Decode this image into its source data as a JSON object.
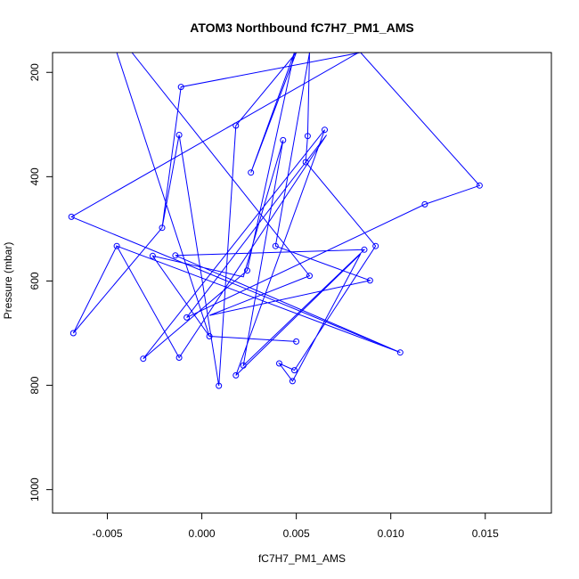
{
  "chart_data": {
    "type": "line",
    "title": "ATOM3 Northbound fC7H7_PM1_AMS",
    "xlabel": "fC7H7_PM1_AMS",
    "ylabel": "Pressure (mbar)",
    "xlim": [
      -0.0079,
      0.0185
    ],
    "ylim": [
      1045,
      162
    ],
    "y_reversed": true,
    "grid": false,
    "legend": "none",
    "x_ticks": [
      {
        "value": -0.005,
        "label": "-0.005"
      },
      {
        "value": 0.0,
        "label": "0.000"
      },
      {
        "value": 0.005,
        "label": "0.005"
      },
      {
        "value": 0.01,
        "label": "0.010"
      },
      {
        "value": 0.015,
        "label": "0.015"
      }
    ],
    "y_ticks": [
      {
        "value": 200,
        "label": "200"
      },
      {
        "value": 400,
        "label": "400"
      },
      {
        "value": 600,
        "label": "600"
      },
      {
        "value": 800,
        "label": "800"
      },
      {
        "value": 1000,
        "label": "1000"
      }
    ],
    "series": [
      {
        "color": "#0000ff",
        "points": [
          {
            "x": -0.0037,
            "y": 162,
            "marker": false
          },
          {
            "x": 0.0057,
            "y": 590,
            "marker": true
          },
          {
            "x": 0.0004,
            "y": 666,
            "marker": false
          },
          {
            "x": 0.0089,
            "y": 599,
            "marker": true
          },
          {
            "x": 0.0039,
            "y": 533,
            "marker": true
          },
          {
            "x": 0.0057,
            "y": 162,
            "marker": false
          },
          {
            "x": 0.0056,
            "y": 322,
            "marker": true
          },
          {
            "x": 0.0055,
            "y": 372,
            "marker": true
          },
          {
            "x": 0.0092,
            "y": 533,
            "marker": true
          },
          {
            "x": 0.0049,
            "y": 771,
            "marker": true
          },
          {
            "x": 0.0041,
            "y": 758,
            "marker": true
          },
          {
            "x": 0.0048,
            "y": 792,
            "marker": true
          },
          {
            "x": 0.0084,
            "y": 548,
            "marker": false
          },
          {
            "x": 0.0018,
            "y": 781,
            "marker": true
          },
          {
            "x": 0.0065,
            "y": 310,
            "marker": true
          },
          {
            "x": -0.0031,
            "y": 749,
            "marker": true
          },
          {
            "x": 0.0024,
            "y": 580,
            "marker": true
          },
          {
            "x": 0.0049,
            "y": 162,
            "marker": false
          },
          {
            "x": 0.0026,
            "y": 392,
            "marker": true
          },
          {
            "x": 0.005,
            "y": 162,
            "marker": false
          },
          {
            "x": 0.0018,
            "y": 302,
            "marker": true
          },
          {
            "x": 0.0009,
            "y": 801,
            "marker": true
          },
          {
            "x": -0.0012,
            "y": 320,
            "marker": true
          },
          {
            "x": -0.0021,
            "y": 498,
            "marker": true
          },
          {
            "x": -0.0011,
            "y": 228,
            "marker": true
          },
          {
            "x": 0.0084,
            "y": 162,
            "marker": false
          },
          {
            "x": 0.0147,
            "y": 417,
            "marker": true
          },
          {
            "x": 0.0118,
            "y": 453,
            "marker": true
          },
          {
            "x": -0.0008,
            "y": 670,
            "marker": true
          },
          {
            "x": 0.0066,
            "y": 320,
            "marker": false
          },
          {
            "x": -0.0012,
            "y": 747,
            "marker": true
          },
          {
            "x": -0.0045,
            "y": 533,
            "marker": true
          },
          {
            "x": 0.0105,
            "y": 737,
            "marker": true
          },
          {
            "x": -0.0014,
            "y": 551,
            "marker": true
          },
          {
            "x": 0.0086,
            "y": 540,
            "marker": true
          },
          {
            "x": 0.0022,
            "y": 762,
            "marker": true
          },
          {
            "x": 0.0043,
            "y": 330,
            "marker": true
          },
          {
            "x": 0.0022,
            "y": 592,
            "marker": false
          },
          {
            "x": -0.0026,
            "y": 552,
            "marker": true
          },
          {
            "x": 0.0004,
            "y": 706,
            "marker": true
          },
          {
            "x": 0.005,
            "y": 716,
            "marker": true
          },
          {
            "x": 0.0004,
            "y": 706,
            "marker": false
          },
          {
            "x": -0.0045,
            "y": 162,
            "marker": false
          }
        ]
      },
      {
        "color": "#0000ff",
        "points": [
          {
            "x": 0.0083,
            "y": 162,
            "marker": false
          },
          {
            "x": -0.0069,
            "y": 477,
            "marker": true
          },
          {
            "x": 0.0105,
            "y": 737,
            "marker": false
          }
        ]
      },
      {
        "color": "#0000ff",
        "points": [
          {
            "x": -0.0045,
            "y": 533,
            "marker": false
          },
          {
            "x": -0.0068,
            "y": 700,
            "marker": true
          },
          {
            "x": -0.0021,
            "y": 498,
            "marker": false
          }
        ]
      }
    ]
  }
}
